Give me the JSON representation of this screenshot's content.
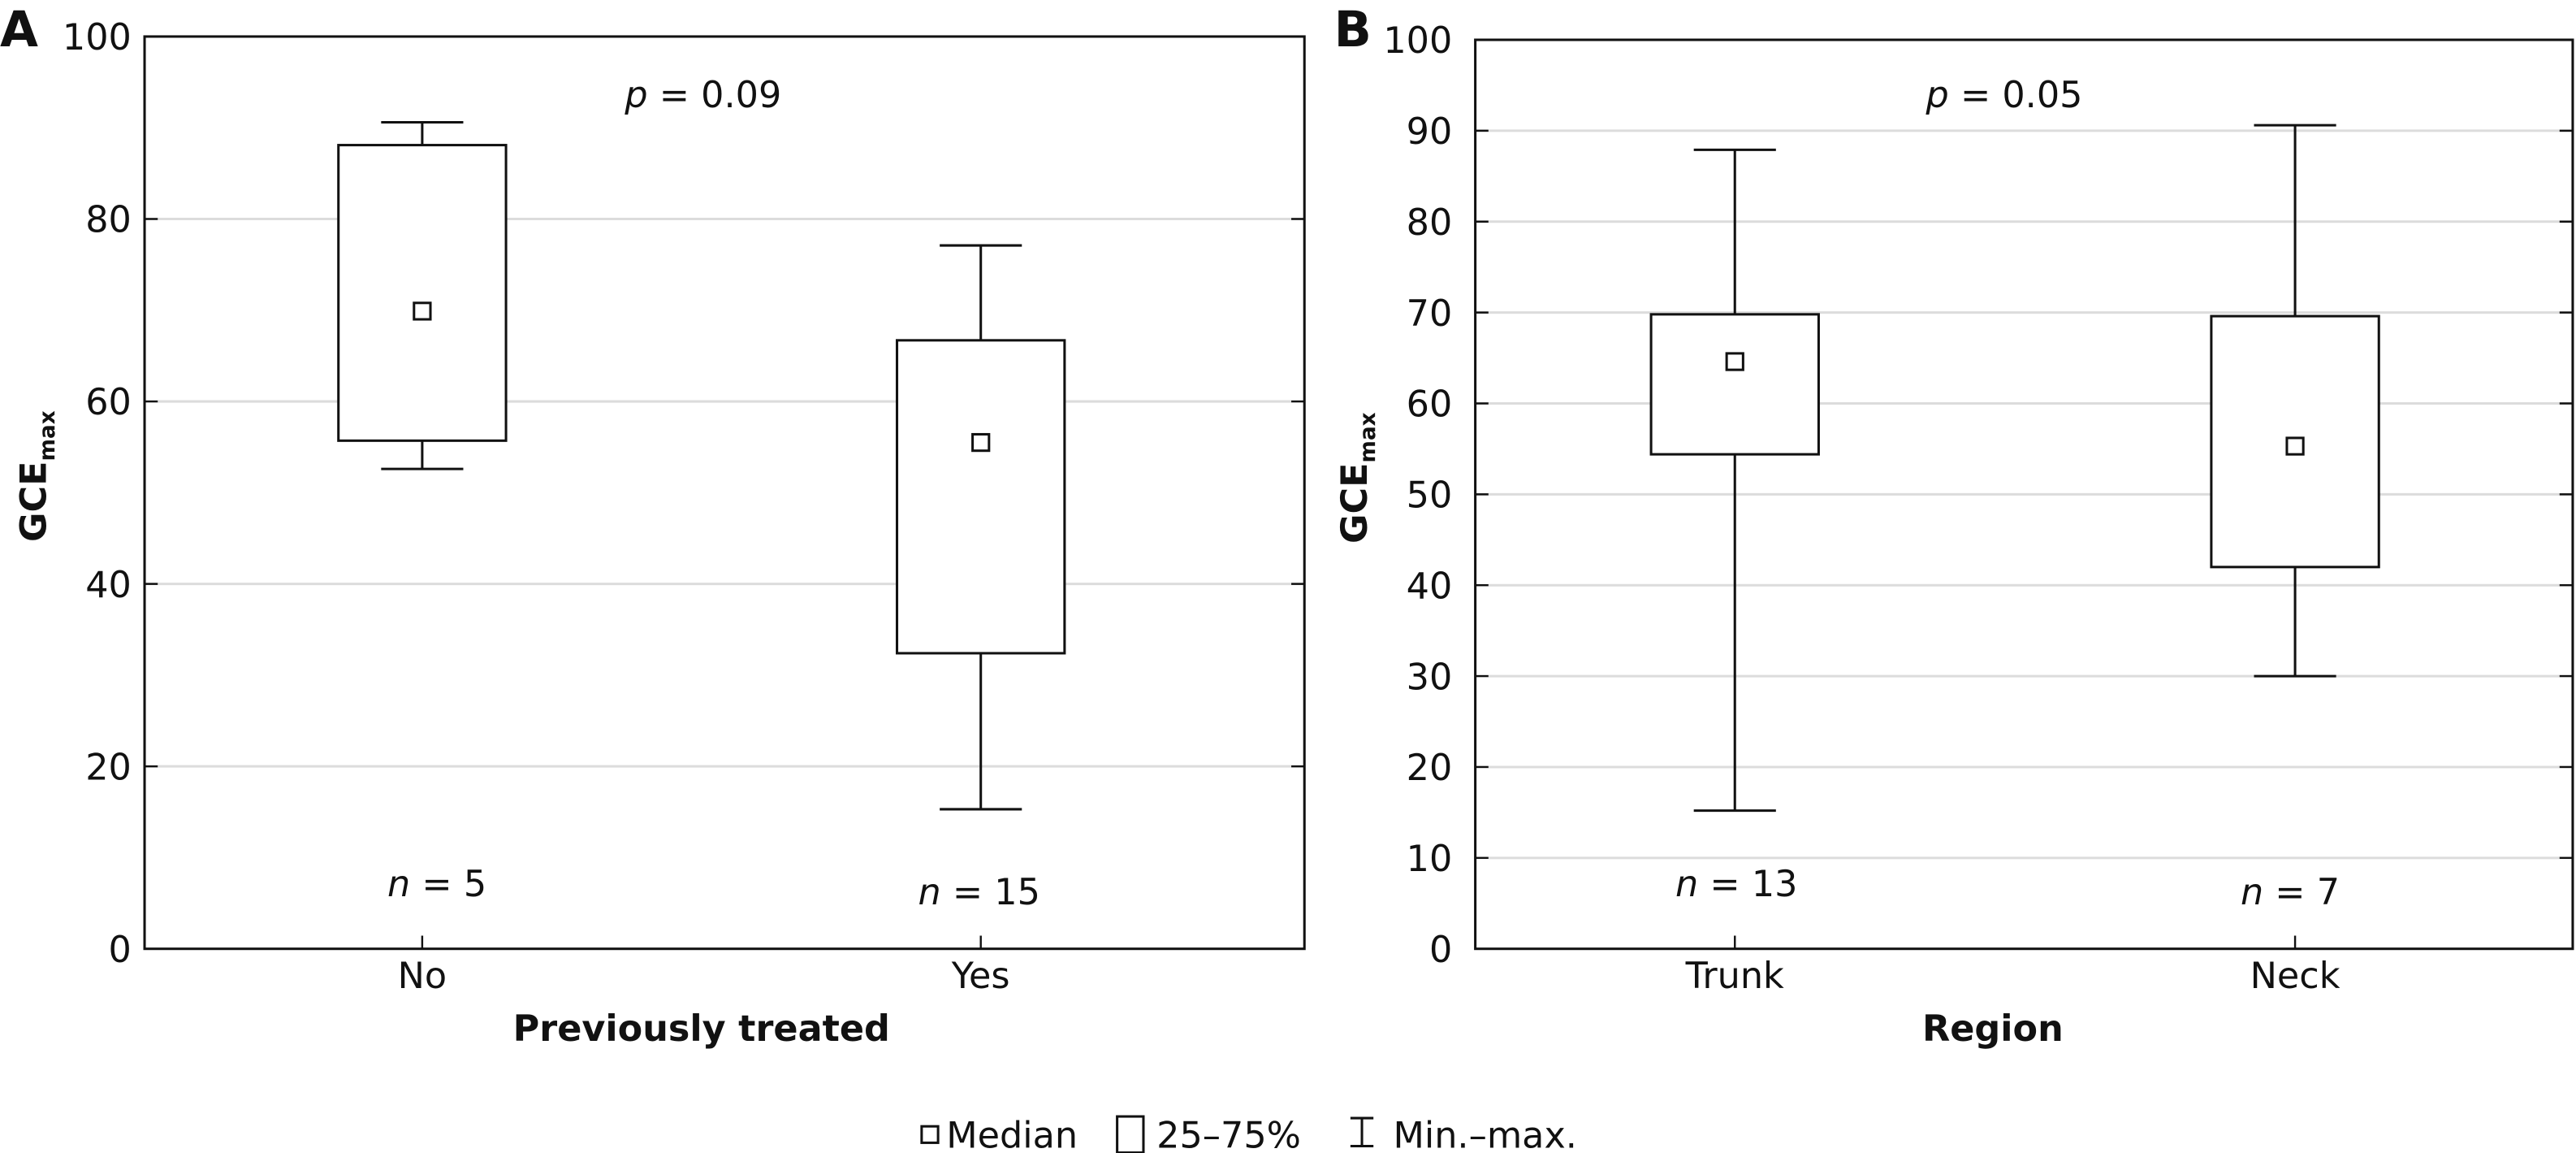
{
  "chart_data": [
    {
      "type": "box",
      "panel_label": "A",
      "xlabel": "Previously treated",
      "ylabel": "GCE",
      "ylabel_sub": "max",
      "ylim": [
        0,
        100
      ],
      "yticks": [
        0,
        20,
        40,
        60,
        80,
        100
      ],
      "grid": true,
      "annotation_p": {
        "italic": "p",
        "rest": " = 0.09"
      },
      "categories": [
        "No",
        "Yes"
      ],
      "n_labels": [
        {
          "italic": "n",
          "rest": " = 5"
        },
        {
          "italic": "n",
          "rest": " = 15"
        }
      ],
      "series": [
        {
          "name": "No",
          "min": 52.6,
          "q1": 55.7,
          "median": 69.9,
          "q3": 88.1,
          "max": 90.6
        },
        {
          "name": "Yes",
          "min": 15.3,
          "q1": 32.4,
          "median": 55.5,
          "q3": 66.7,
          "max": 77.1
        }
      ]
    },
    {
      "type": "box",
      "panel_label": "B",
      "xlabel": "Region",
      "ylabel": "GCE",
      "ylabel_sub": "max",
      "ylim": [
        0,
        100
      ],
      "yticks": [
        0,
        10,
        20,
        30,
        40,
        50,
        60,
        70,
        80,
        90,
        100
      ],
      "grid": true,
      "annotation_p": {
        "italic": "p",
        "rest": " = 0.05"
      },
      "categories": [
        "Trunk",
        "Neck"
      ],
      "n_labels": [
        {
          "italic": "n",
          "rest": " = 13"
        },
        {
          "italic": "n",
          "rest": " = 7"
        }
      ],
      "series": [
        {
          "name": "Trunk",
          "min": 15.2,
          "q1": 54.4,
          "median": 64.6,
          "q3": 69.8,
          "max": 87.9
        },
        {
          "name": "Neck",
          "min": 30.0,
          "q1": 42.0,
          "median": 55.3,
          "q3": 69.6,
          "max": 90.6
        }
      ]
    }
  ],
  "legend": {
    "median": "Median",
    "box": "25–75%",
    "whisker": "Min.–max.",
    "placement": "bottom-center"
  },
  "colors": {
    "grid": "#dcdcdc",
    "stroke": "#111111"
  }
}
